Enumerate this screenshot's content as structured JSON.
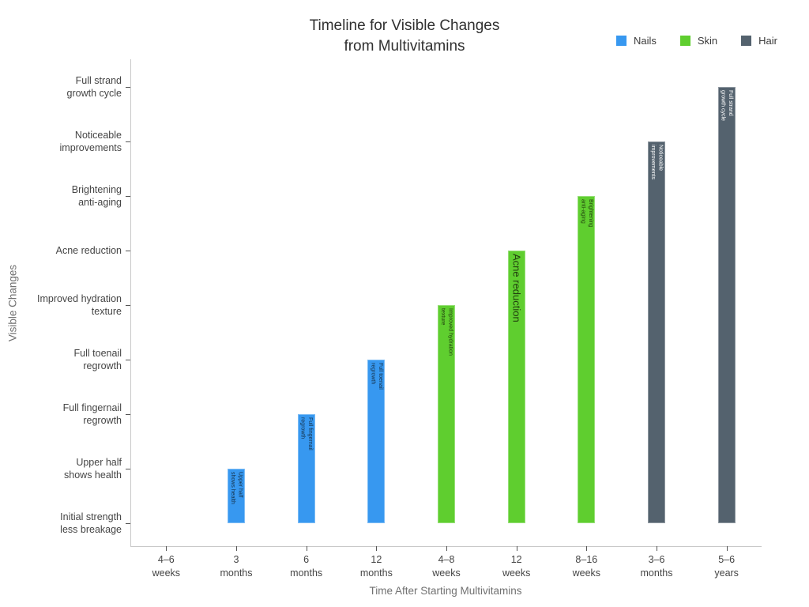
{
  "chart_data": {
    "type": "bar",
    "title": "Timeline for Visible Changes\nfrom Multivitamins",
    "xlabel": "Time After Starting Multivitamins",
    "ylabel": "Visible Changes",
    "x_categories": [
      "4–6\nweeks",
      "3\nmonths",
      "6\nmonths",
      "12\nmonths",
      "4–8\nweeks",
      "12\nweeks",
      "8–16\nweeks",
      "3–6\nmonths",
      "5–6\nyears"
    ],
    "y_categories": [
      "Initial strength\nless breakage",
      "Upper half\nshows health",
      "Full fingernail\nregrowth",
      "Full toenail\nregrowth",
      "Improved hydration\ntexture",
      "Acne reduction",
      "Brightening\nanti-aging",
      "Noticeable\nimprovements",
      "Full strand\ngrowth cycle"
    ],
    "grid": false,
    "legend_position": "top-right",
    "baseline_category": "Initial strength less breakage",
    "series": [
      {
        "name": "Nails",
        "color": "#3798F0",
        "label_color": "#16324A",
        "bars": [
          {
            "x": "4–6\nweeks",
            "milestone": "Initial strength less breakage",
            "value": 1,
            "inside_label": ""
          },
          {
            "x": "3\nmonths",
            "milestone": "Upper half shows health",
            "value": 2,
            "inside_label": "Upper half\nshows health"
          },
          {
            "x": "6\nmonths",
            "milestone": "Full fingernail regrowth",
            "value": 3,
            "inside_label": "Full fingernail\nregrowth"
          },
          {
            "x": "12\nmonths",
            "milestone": "Full toenail regrowth",
            "value": 4,
            "inside_label": "Full toenail\nregrowth"
          }
        ]
      },
      {
        "name": "Skin",
        "color": "#5FCE2F",
        "label_color": "#22400F",
        "bars": [
          {
            "x": "4–8\nweeks",
            "milestone": "Improved hydration texture",
            "value": 5,
            "inside_label": "Improved hydration\ntexture"
          },
          {
            "x": "12\nweeks",
            "milestone": "Acne reduction",
            "value": 6,
            "inside_label": "Acne reduction"
          },
          {
            "x": "8–16\nweeks",
            "milestone": "Brightening anti-aging",
            "value": 7,
            "inside_label": "Brightening\nanti-aging"
          }
        ]
      },
      {
        "name": "Hair",
        "color": "#54626E",
        "label_color": "#FFFFFF",
        "bars": [
          {
            "x": "3–6\nmonths",
            "milestone": "Noticeable improvements",
            "value": 8,
            "inside_label": "Noticeable\nimprovements"
          },
          {
            "x": "5–6\nyears",
            "milestone": "Full strand growth cycle",
            "value": 9,
            "inside_label": "Full strand\ngrowth cycle"
          }
        ]
      }
    ]
  }
}
